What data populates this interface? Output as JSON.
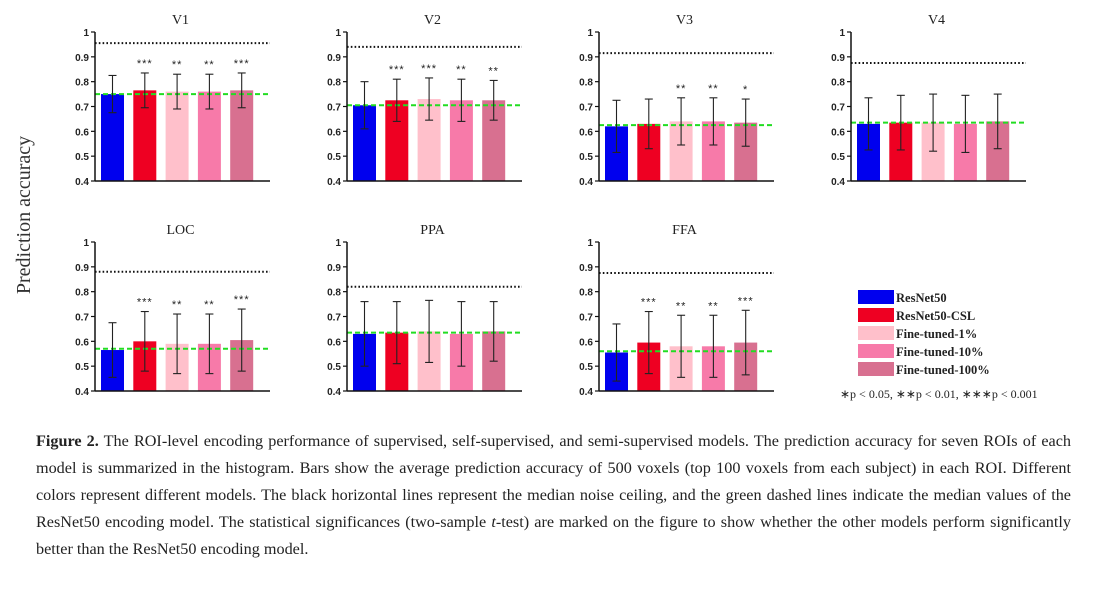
{
  "ylabel": "Prediction accuracy",
  "colors": [
    "#0000ee",
    "#ee0022",
    "#ffc0cb",
    "#f77aa9",
    "#d87090"
  ],
  "legend": {
    "items": [
      "ResNet50",
      "ResNet50-CSL",
      "Fine-tuned-1%",
      "Fine-tuned-10%",
      "Fine-tuned-100%"
    ],
    "significance": "∗p < 0.05,  ∗∗p < 0.01,  ∗∗∗p < 0.001"
  },
  "chart_data": [
    {
      "type": "bar",
      "title": "V1",
      "ylim": [
        0.4,
        1
      ],
      "yticks": [
        "0.4",
        "0.5",
        "0.6",
        "0.7",
        "0.8",
        "0.9",
        "1"
      ],
      "series": [
        "ResNet50",
        "ResNet50-CSL",
        "Fine-tuned-1%",
        "Fine-tuned-10%",
        "Fine-tuned-100%"
      ],
      "values": [
        0.75,
        0.765,
        0.76,
        0.76,
        0.765
      ],
      "errors": [
        0.075,
        0.07,
        0.07,
        0.07,
        0.07
      ],
      "noise_ceiling": 0.955,
      "baseline": 0.75,
      "significance": [
        "",
        "***",
        "**",
        "**",
        "***"
      ]
    },
    {
      "type": "bar",
      "title": "V2",
      "ylim": [
        0.4,
        1
      ],
      "yticks": [
        "0.4",
        "0.5",
        "0.6",
        "0.7",
        "0.8",
        "0.9",
        "1"
      ],
      "series": [
        "ResNet50",
        "ResNet50-CSL",
        "Fine-tuned-1%",
        "Fine-tuned-10%",
        "Fine-tuned-100%"
      ],
      "values": [
        0.705,
        0.725,
        0.73,
        0.725,
        0.725
      ],
      "errors": [
        0.095,
        0.085,
        0.085,
        0.085,
        0.08
      ],
      "noise_ceiling": 0.94,
      "baseline": 0.705,
      "significance": [
        "",
        "***",
        "***",
        "**",
        "**"
      ]
    },
    {
      "type": "bar",
      "title": "V3",
      "ylim": [
        0.4,
        1
      ],
      "yticks": [
        "0.4",
        "0.5",
        "0.6",
        "0.7",
        "0.8",
        "0.9",
        "1"
      ],
      "series": [
        "ResNet50",
        "ResNet50-CSL",
        "Fine-tuned-1%",
        "Fine-tuned-10%",
        "Fine-tuned-100%"
      ],
      "values": [
        0.62,
        0.63,
        0.64,
        0.64,
        0.635
      ],
      "errors": [
        0.105,
        0.1,
        0.095,
        0.095,
        0.095
      ],
      "noise_ceiling": 0.915,
      "baseline": 0.625,
      "significance": [
        "",
        "",
        "**",
        "**",
        "*"
      ]
    },
    {
      "type": "bar",
      "title": "V4",
      "ylim": [
        0.4,
        1
      ],
      "yticks": [
        "0.4",
        "0.5",
        "0.6",
        "0.7",
        "0.8",
        "0.9",
        "1"
      ],
      "series": [
        "ResNet50",
        "ResNet50-CSL",
        "Fine-tuned-1%",
        "Fine-tuned-10%",
        "Fine-tuned-100%"
      ],
      "values": [
        0.63,
        0.635,
        0.635,
        0.63,
        0.64
      ],
      "errors": [
        0.105,
        0.11,
        0.115,
        0.115,
        0.11
      ],
      "noise_ceiling": 0.875,
      "baseline": 0.635,
      "significance": [
        "",
        "",
        "",
        "",
        ""
      ]
    },
    {
      "type": "bar",
      "title": "LOC",
      "ylim": [
        0.4,
        1
      ],
      "yticks": [
        "0.4",
        "0.5",
        "0.6",
        "0.7",
        "0.8",
        "0.9",
        "1"
      ],
      "series": [
        "ResNet50",
        "ResNet50-CSL",
        "Fine-tuned-1%",
        "Fine-tuned-10%",
        "Fine-tuned-100%"
      ],
      "values": [
        0.565,
        0.6,
        0.59,
        0.59,
        0.605
      ],
      "errors": [
        0.11,
        0.12,
        0.12,
        0.12,
        0.125
      ],
      "noise_ceiling": 0.88,
      "baseline": 0.57,
      "significance": [
        "",
        "***",
        "**",
        "**",
        "***"
      ]
    },
    {
      "type": "bar",
      "title": "PPA",
      "ylim": [
        0.4,
        1
      ],
      "yticks": [
        "0.4",
        "0.5",
        "0.6",
        "0.7",
        "0.8",
        "0.9",
        "1"
      ],
      "series": [
        "ResNet50",
        "ResNet50-CSL",
        "Fine-tuned-1%",
        "Fine-tuned-10%",
        "Fine-tuned-100%"
      ],
      "values": [
        0.63,
        0.635,
        0.64,
        0.63,
        0.64
      ],
      "errors": [
        0.13,
        0.125,
        0.125,
        0.13,
        0.12
      ],
      "noise_ceiling": 0.82,
      "baseline": 0.635,
      "significance": [
        "",
        "",
        "",
        "",
        ""
      ]
    },
    {
      "type": "bar",
      "title": "FFA",
      "ylim": [
        0.4,
        1
      ],
      "yticks": [
        "0.4",
        "0.5",
        "0.6",
        "0.7",
        "0.8",
        "0.9",
        "1"
      ],
      "series": [
        "ResNet50",
        "ResNet50-CSL",
        "Fine-tuned-1%",
        "Fine-tuned-10%",
        "Fine-tuned-100%"
      ],
      "values": [
        0.555,
        0.595,
        0.58,
        0.58,
        0.595
      ],
      "errors": [
        0.115,
        0.125,
        0.125,
        0.125,
        0.13
      ],
      "noise_ceiling": 0.875,
      "baseline": 0.56,
      "significance": [
        "",
        "***",
        "**",
        "**",
        "***"
      ]
    }
  ],
  "caption": {
    "label": "Figure 2.",
    "text1": " The ROI-level encoding performance of supervised, self-supervised, and semi-supervised models. The prediction accuracy for seven ROIs of each model is summarized in the histogram. Bars show the average prediction accuracy of 500 voxels (top 100 voxels from each subject) in each ROI. Different colors represent different models. The black horizontal lines represent the median noise ceiling, and the green dashed lines indicate the median values of the ResNet50 encoding model. The statistical significances (two-sample ",
    "italic": "t",
    "text2": "-test) are marked on the figure to show whether the other models perform significantly better than the ResNet50 encoding model."
  }
}
